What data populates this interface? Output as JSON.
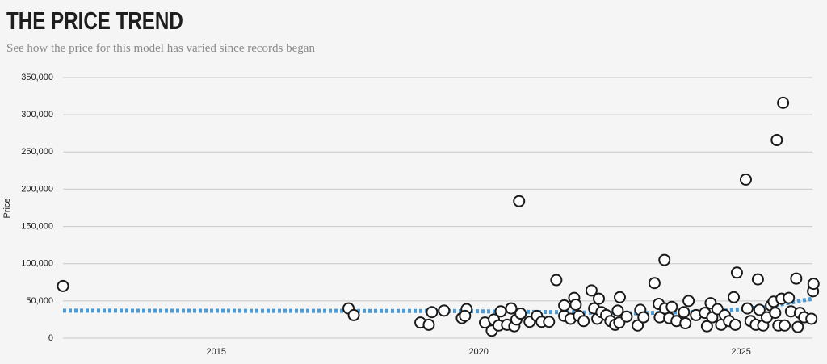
{
  "chart_data": {
    "type": "scatter",
    "title": "THE PRICE TREND",
    "subtitle": "See how the price for this model has varied since records began",
    "y_label": "Price",
    "color": "#1a1a1a",
    "x": [
      2012.08,
      2017.52,
      2017.62,
      2018.89,
      2019.05,
      2019.11,
      2019.34,
      2019.68,
      2019.77,
      2019.74,
      2020.12,
      2020.25,
      2020.29,
      2020.42,
      2020.38,
      2020.54,
      2020.62,
      2020.68,
      2020.72,
      2020.77,
      2020.8,
      2020.97,
      2021.11,
      2021.2,
      2021.34,
      2021.48,
      2021.63,
      2021.63,
      2021.75,
      2021.82,
      2021.85,
      2021.91,
      2022.0,
      2022.15,
      2022.2,
      2022.26,
      2022.29,
      2022.34,
      2022.43,
      2022.51,
      2022.6,
      2022.65,
      2022.69,
      2022.68,
      2022.82,
      2023.03,
      2023.08,
      2023.14,
      2023.35,
      2023.43,
      2023.45,
      2023.54,
      2023.55,
      2023.63,
      2023.68,
      2023.77,
      2023.91,
      2023.94,
      2024.0,
      2024.14,
      2024.31,
      2024.35,
      2024.42,
      2024.45,
      2024.55,
      2024.62,
      2024.69,
      2024.77,
      2024.86,
      2024.89,
      2024.92,
      2025.09,
      2025.12,
      2025.18,
      2025.28,
      2025.32,
      2025.35,
      2025.42,
      2025.49,
      2025.57,
      2025.62,
      2025.65,
      2025.68,
      2025.71,
      2025.77,
      2025.8,
      2025.83,
      2025.91,
      2025.95,
      2026.05,
      2026.08,
      2026.12,
      2026.2,
      2026.34,
      2026.37,
      2026.38
    ],
    "values": [
      70000,
      40000,
      31000,
      21000,
      18000,
      35000,
      37000,
      27000,
      39000,
      30000,
      21000,
      10000,
      25000,
      36000,
      17000,
      18000,
      40000,
      16000,
      25000,
      184000,
      33000,
      22000,
      30000,
      22000,
      22000,
      78000,
      44000,
      30000,
      26000,
      54000,
      45000,
      30000,
      23000,
      64000,
      40000,
      26000,
      53000,
      35000,
      31000,
      23000,
      18000,
      37000,
      55000,
      21000,
      29000,
      17000,
      38000,
      28000,
      74000,
      46000,
      28000,
      105000,
      40000,
      27000,
      42000,
      23000,
      35000,
      20000,
      50000,
      31000,
      34000,
      16000,
      47000,
      28000,
      39000,
      18000,
      31000,
      23000,
      55000,
      18000,
      88000,
      213000,
      40000,
      23000,
      18000,
      79000,
      38000,
      17000,
      28000,
      44000,
      49000,
      34000,
      266000,
      17000,
      53000,
      316000,
      17000,
      54000,
      36000,
      80000,
      15000,
      34000,
      28000,
      26000,
      63000,
      73000
    ],
    "trend": {
      "type": "line",
      "color": "#4a9bd6",
      "x": [
        2012.08,
        2019.5,
        2021.5,
        2023.0,
        2024.5,
        2025.5,
        2026.36
      ],
      "values": [
        37000,
        36500,
        35000,
        33500,
        36000,
        42000,
        53000
      ]
    },
    "xlim": [
      2012.08,
      2026.36
    ],
    "xticks": [
      2015,
      2020,
      2025
    ],
    "ylim": [
      0,
      350000
    ],
    "yticks": [
      0,
      {
        "value": 50000,
        "label": "50,000"
      },
      {
        "value": 100000,
        "label": "100,000"
      },
      {
        "value": 150000,
        "label": "150,000"
      },
      {
        "value": 200000,
        "label": "200,000"
      },
      {
        "value": 250000,
        "label": "250,000"
      },
      {
        "value": 300000,
        "label": "300,000"
      },
      {
        "value": 350000,
        "label": "350,000"
      }
    ],
    "grid": true
  }
}
